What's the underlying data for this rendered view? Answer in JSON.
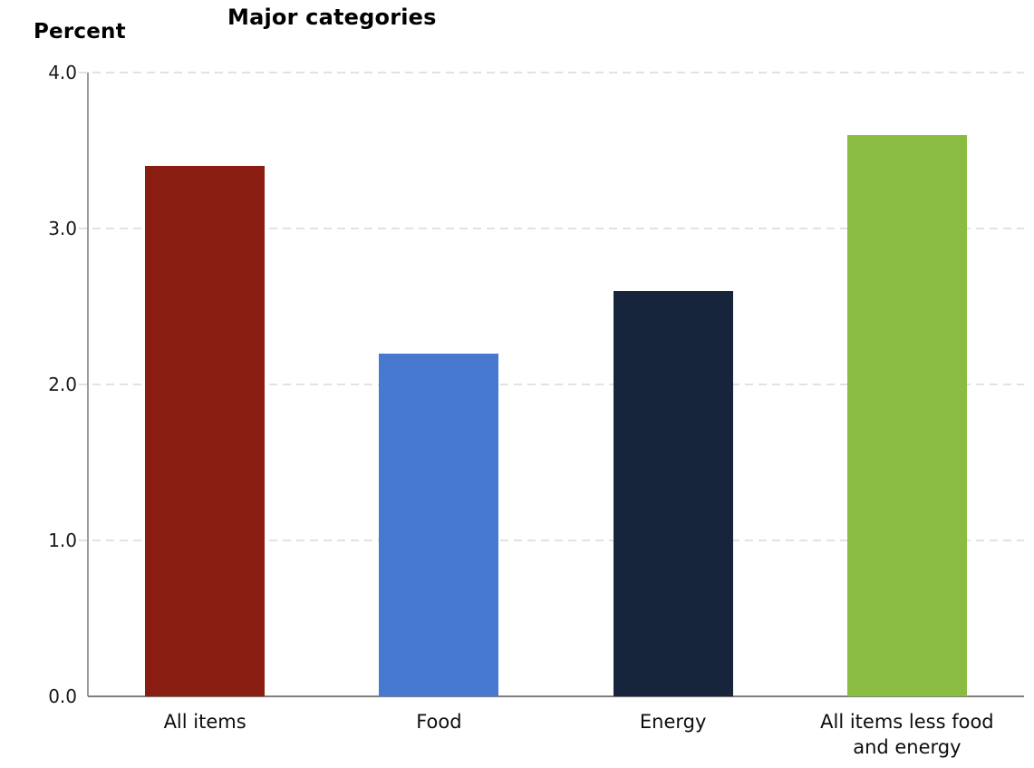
{
  "header": {
    "unit_label": "Percent",
    "title": "Major categories"
  },
  "chart_data": {
    "type": "bar",
    "title": "Major categories",
    "ylabel": "Percent",
    "xlabel": "",
    "categories": [
      "All items",
      "Food",
      "Energy",
      "All items less food and energy"
    ],
    "categories_display_lines": [
      [
        "All items"
      ],
      [
        "Food"
      ],
      [
        "Energy"
      ],
      [
        "All items less food",
        "and energy"
      ]
    ],
    "values": [
      3.4,
      2.2,
      2.6,
      3.6
    ],
    "bar_colors": [
      "#8A1D12",
      "#4879D1",
      "#16243C",
      "#8BBC42"
    ],
    "ylim": [
      0,
      4
    ],
    "ytick_labels": [
      "0.0",
      "1.0",
      "2.0",
      "3.0",
      "4.0"
    ],
    "grid": {
      "horizontal": true,
      "style": "dashed",
      "color": "#e2e2e2",
      "interval": 1.0
    },
    "legend": "none",
    "axis_color": "#8c8c8c"
  }
}
